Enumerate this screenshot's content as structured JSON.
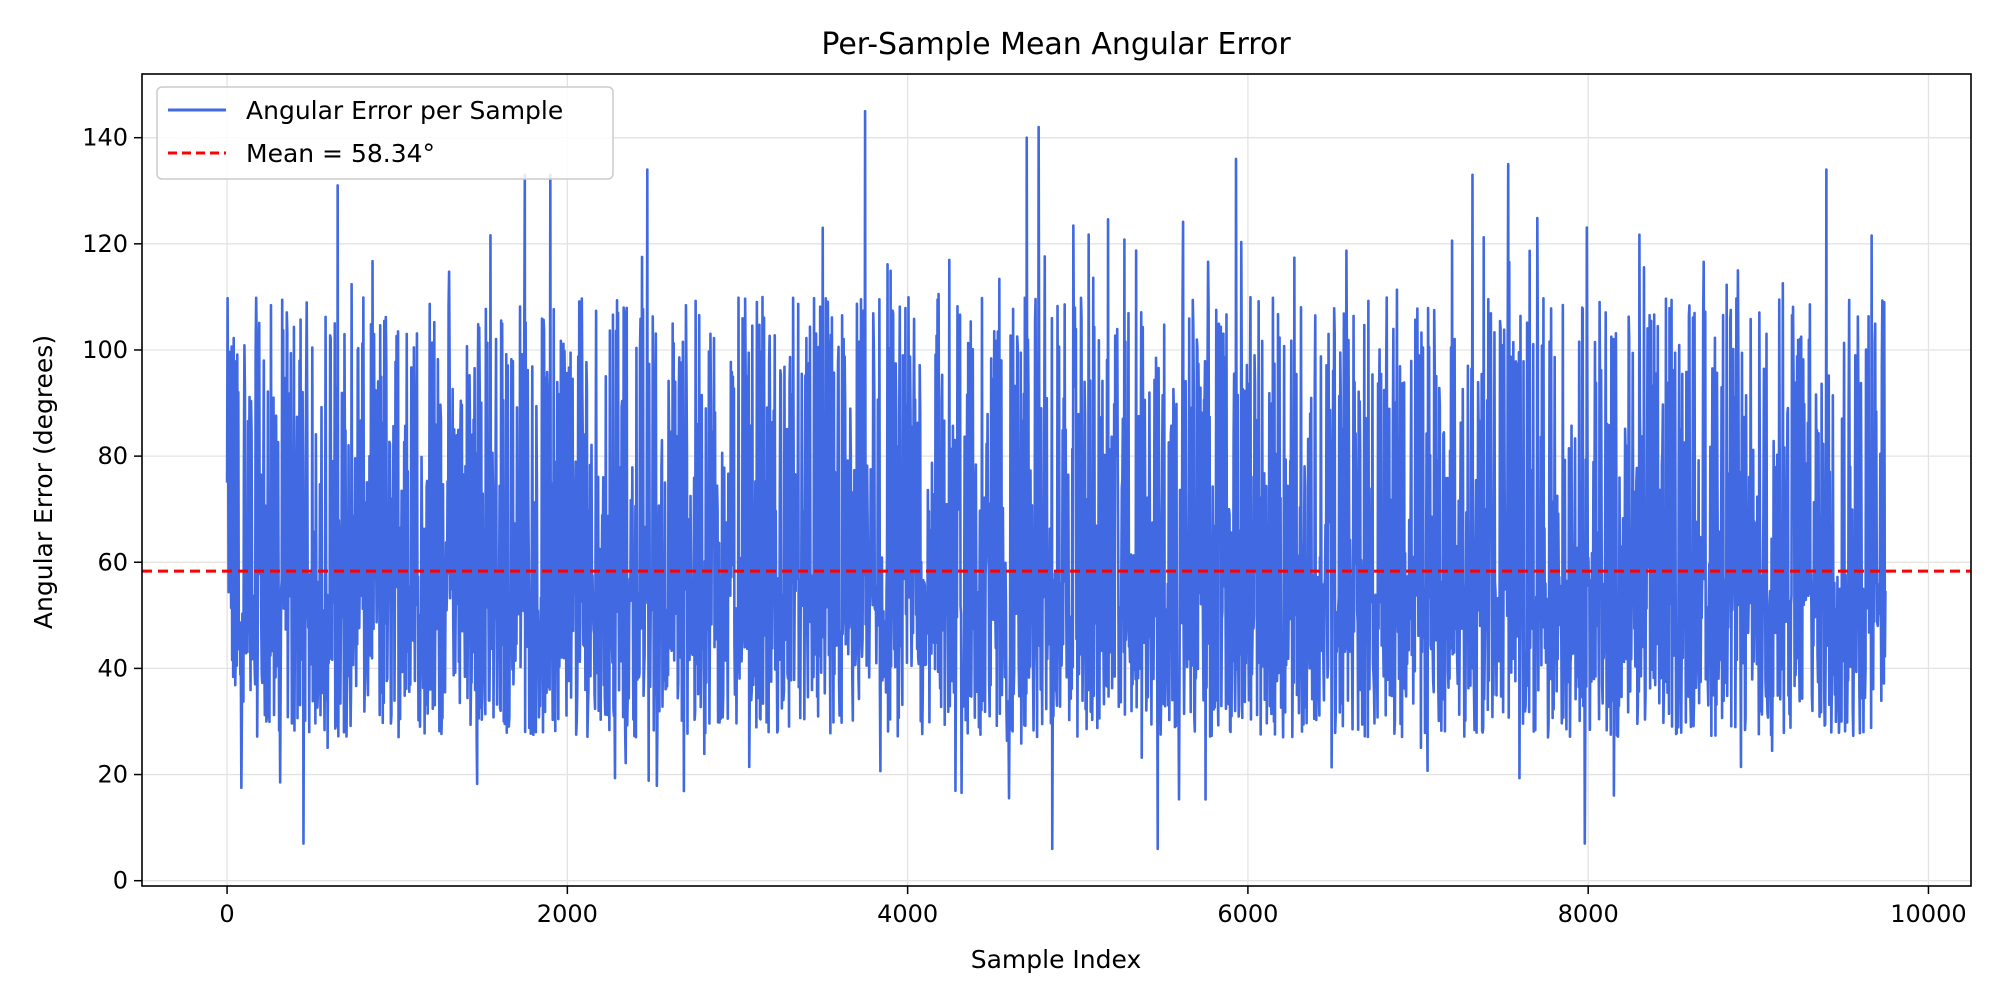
{
  "chart_data": {
    "type": "line",
    "title": "Per-Sample Mean Angular Error",
    "xlabel": "Sample Index",
    "ylabel": "Angular Error (degrees)",
    "xlim": [
      -500,
      10250
    ],
    "ylim": [
      -1,
      152
    ],
    "xticks": [
      0,
      2000,
      4000,
      6000,
      8000,
      10000
    ],
    "yticks": [
      0,
      20,
      40,
      60,
      80,
      100,
      120,
      140
    ],
    "grid": true,
    "legend_position": "upper-left",
    "series": [
      {
        "name": "Angular Error per Sample",
        "color": "#4169e1",
        "n_points": 9750,
        "x_start": 0,
        "x_end": 9749,
        "typical_low": 27,
        "typical_high": 110,
        "observed_min": 6,
        "observed_max": 145,
        "notable_points": [
          {
            "x": 0,
            "y": 75
          },
          {
            "x": 449,
            "y": 7
          },
          {
            "x": 650,
            "y": 131
          },
          {
            "x": 1750,
            "y": 133
          },
          {
            "x": 1900,
            "y": 133
          },
          {
            "x": 2470,
            "y": 134
          },
          {
            "x": 3750,
            "y": 145
          },
          {
            "x": 4700,
            "y": 140
          },
          {
            "x": 4770,
            "y": 142
          },
          {
            "x": 4850,
            "y": 6
          },
          {
            "x": 5470,
            "y": 6
          },
          {
            "x": 5930,
            "y": 136
          },
          {
            "x": 7320,
            "y": 133
          },
          {
            "x": 7530,
            "y": 135
          },
          {
            "x": 7980,
            "y": 7
          },
          {
            "x": 9400,
            "y": 134
          },
          {
            "x": 9740,
            "y": 109
          }
        ]
      },
      {
        "name": "Mean = 58.34°",
        "color": "#ff0000",
        "style": "dashed",
        "y": 58.34
      }
    ]
  }
}
